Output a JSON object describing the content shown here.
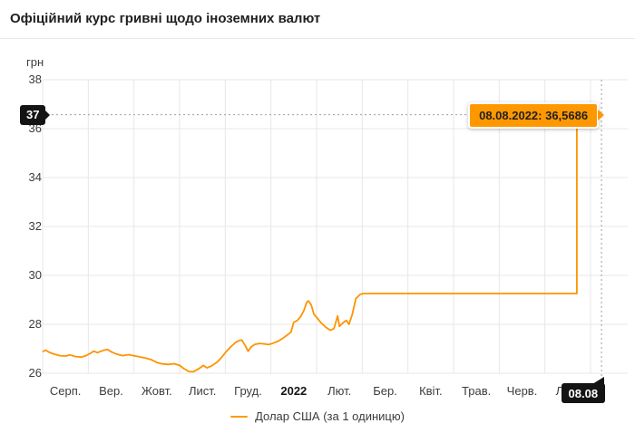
{
  "header": {
    "title": "Офіційний курс гривні щодо іноземних валют"
  },
  "colors": {
    "accent_orange": "#ff9300",
    "tooltip_bg": "#ff9800",
    "badge_bg": "#141414",
    "grid": "#e7e7e7",
    "crosshair": "#9e9e9e",
    "text": "#3c3c3c"
  },
  "axes": {
    "y_unit_label": "грн",
    "y_tick_labels": [
      "38",
      "36",
      "34",
      "32",
      "30",
      "28",
      "26"
    ],
    "x_tick_labels": [
      "Серп.",
      "Вер.",
      "Жовт.",
      "Лист.",
      "Груд.",
      "2022",
      "Лют.",
      "Бер.",
      "Квіт.",
      "Трав.",
      "Черв.",
      "Лип."
    ]
  },
  "crosshair": {
    "y_badge_label": "37",
    "x_badge_label": "08.08",
    "tooltip_text": "08.08.2022: 36,5686"
  },
  "legend": {
    "series_label": "Долар США (за 1 одиницю)"
  },
  "chart_data": {
    "type": "line",
    "title": "Офіційний курс гривні щодо іноземних валют",
    "ylabel": "грн",
    "ylim": [
      26,
      38
    ],
    "yticks": [
      38,
      36,
      34,
      32,
      30,
      28,
      26
    ],
    "x_unit": "months since 2021-08-01",
    "x_tick_labels": [
      "Серп.",
      "Вер.",
      "Жовт.",
      "Лист.",
      "Груд.",
      "2022",
      "Лют.",
      "Бер.",
      "Квіт.",
      "Трав.",
      "Черв.",
      "Лип."
    ],
    "grid": true,
    "legend_position": "bottom-center",
    "highlight": {
      "date": "08.08.2022",
      "value": 36.5686,
      "value_text": "36,5686",
      "m": 12.24,
      "rounded_axis_label": "37"
    },
    "series": [
      {
        "name": "Долар США (за 1 одиницю)",
        "points": [
          [
            0.0,
            26.88
          ],
          [
            0.07,
            26.94
          ],
          [
            0.15,
            26.85
          ],
          [
            0.25,
            26.78
          ],
          [
            0.38,
            26.72
          ],
          [
            0.5,
            26.7
          ],
          [
            0.6,
            26.75
          ],
          [
            0.72,
            26.68
          ],
          [
            0.85,
            26.66
          ],
          [
            0.95,
            26.72
          ],
          [
            1.05,
            26.82
          ],
          [
            1.12,
            26.9
          ],
          [
            1.2,
            26.84
          ],
          [
            1.32,
            26.93
          ],
          [
            1.42,
            26.97
          ],
          [
            1.52,
            26.86
          ],
          [
            1.62,
            26.78
          ],
          [
            1.75,
            26.72
          ],
          [
            1.88,
            26.76
          ],
          [
            2.0,
            26.71
          ],
          [
            2.12,
            26.67
          ],
          [
            2.25,
            26.62
          ],
          [
            2.38,
            26.55
          ],
          [
            2.5,
            26.44
          ],
          [
            2.62,
            26.38
          ],
          [
            2.75,
            26.36
          ],
          [
            2.88,
            26.39
          ],
          [
            3.0,
            26.32
          ],
          [
            3.1,
            26.18
          ],
          [
            3.2,
            26.07
          ],
          [
            3.3,
            26.06
          ],
          [
            3.42,
            26.18
          ],
          [
            3.52,
            26.32
          ],
          [
            3.6,
            26.22
          ],
          [
            3.7,
            26.3
          ],
          [
            3.82,
            26.45
          ],
          [
            3.92,
            26.65
          ],
          [
            4.02,
            26.88
          ],
          [
            4.12,
            27.08
          ],
          [
            4.22,
            27.25
          ],
          [
            4.3,
            27.33
          ],
          [
            4.36,
            27.36
          ],
          [
            4.44,
            27.12
          ],
          [
            4.5,
            26.9
          ],
          [
            4.57,
            27.08
          ],
          [
            4.65,
            27.18
          ],
          [
            4.75,
            27.22
          ],
          [
            4.85,
            27.2
          ],
          [
            4.95,
            27.17
          ],
          [
            5.05,
            27.23
          ],
          [
            5.15,
            27.3
          ],
          [
            5.25,
            27.42
          ],
          [
            5.35,
            27.55
          ],
          [
            5.44,
            27.68
          ],
          [
            5.5,
            28.08
          ],
          [
            5.58,
            28.16
          ],
          [
            5.65,
            28.32
          ],
          [
            5.72,
            28.55
          ],
          [
            5.78,
            28.88
          ],
          [
            5.82,
            28.96
          ],
          [
            5.88,
            28.8
          ],
          [
            5.94,
            28.42
          ],
          [
            6.02,
            28.24
          ],
          [
            6.1,
            28.06
          ],
          [
            6.2,
            27.88
          ],
          [
            6.3,
            27.76
          ],
          [
            6.38,
            27.82
          ],
          [
            6.46,
            28.34
          ],
          [
            6.5,
            27.92
          ],
          [
            6.58,
            28.06
          ],
          [
            6.65,
            28.16
          ],
          [
            6.71,
            28.0
          ],
          [
            6.78,
            28.4
          ],
          [
            6.86,
            29.05
          ],
          [
            6.95,
            29.22
          ],
          [
            7.02,
            29.2549
          ],
          [
            11.7,
            29.2549
          ],
          [
            11.7,
            36.5686
          ],
          [
            12.25,
            36.5686
          ]
        ]
      }
    ]
  }
}
